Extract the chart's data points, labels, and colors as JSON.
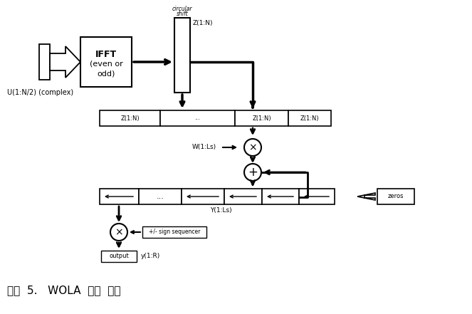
{
  "title": "그림  5.   WOLA  합성  단계",
  "bg_color": "#ffffff",
  "fg_color": "#000000",
  "input_label": "U(1:N/2) (complex)",
  "ifft_label1": "IFFT",
  "ifft_label2": "(even or",
  "ifft_label3": "odd)",
  "circ_label1": "circular",
  "circ_label2": "shift",
  "z1n_label": "Z(1:N)",
  "buf_seg_labels": [
    "Z(1:N)",
    "...",
    "Z(1:N)",
    "Z(1:N)"
  ],
  "w_label": "W(1:Ls)",
  "y_label": "Y(1:Ls)",
  "zeros_label": "zeros",
  "sign_label": "+/- sign sequencer",
  "output_label": "output",
  "yr_label": "y(1:R)"
}
